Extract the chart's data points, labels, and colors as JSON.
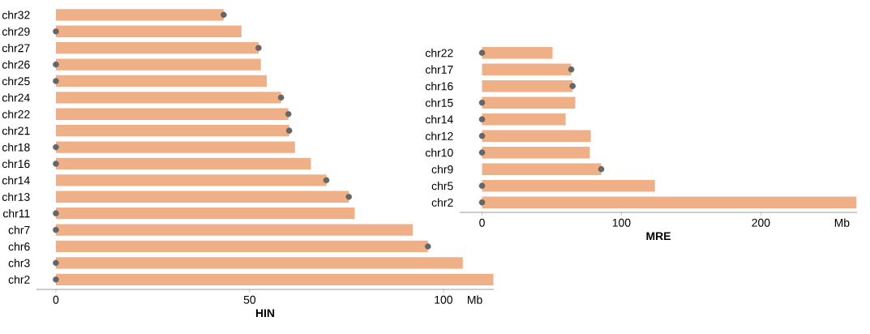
{
  "chart_data": [
    {
      "type": "bar",
      "orientation": "horizontal",
      "xlabel": "HIN",
      "annotations": [
        "Mb"
      ],
      "categories": [
        "chr32",
        "chr29",
        "chr27",
        "chr26",
        "chr25",
        "chr24",
        "chr22",
        "chr21",
        "chr18",
        "chr16",
        "chr14",
        "chr13",
        "chr11",
        "chr7",
        "chr6",
        "chr3",
        "chr2"
      ],
      "xlim": [
        -5,
        113
      ],
      "xticks": [
        0,
        50,
        100
      ],
      "grid": false,
      "series": [
        {
          "color": "#efb088",
          "values": [
            43.3,
            47.9,
            52.3,
            52.9,
            54.4,
            58.1,
            60.0,
            60.2,
            61.7,
            65.8,
            69.8,
            75.6,
            77.1,
            92.1,
            96.0,
            105,
            112.9
          ]
        },
        {
          "type": "scatter",
          "color": "#666666",
          "values": [
            43.3,
            0,
            52.3,
            0,
            0,
            58.1,
            60.0,
            60.2,
            0,
            0,
            69.8,
            75.6,
            0,
            0,
            96.0,
            0,
            0
          ]
        }
      ]
    },
    {
      "type": "bar",
      "orientation": "horizontal",
      "xlabel": "MRE",
      "annotations": [
        "Mb"
      ],
      "categories": [
        "chr22",
        "chr17",
        "chr16",
        "chr15",
        "chr14",
        "chr12",
        "chr10",
        "chr9",
        "chr5",
        "chr2"
      ],
      "xlim": [
        -16,
        269
      ],
      "xticks": [
        0,
        100,
        200
      ],
      "grid": false,
      "series": [
        {
          "color": "#efb088",
          "values": [
            50.6,
            64,
            65,
            66.9,
            60,
            78,
            77.3,
            85.5,
            124,
            268.6
          ]
        },
        {
          "type": "scatter",
          "color": "#666666",
          "values": [
            0,
            64,
            65,
            0,
            0,
            0,
            0,
            85.5,
            0,
            0
          ]
        }
      ]
    }
  ]
}
